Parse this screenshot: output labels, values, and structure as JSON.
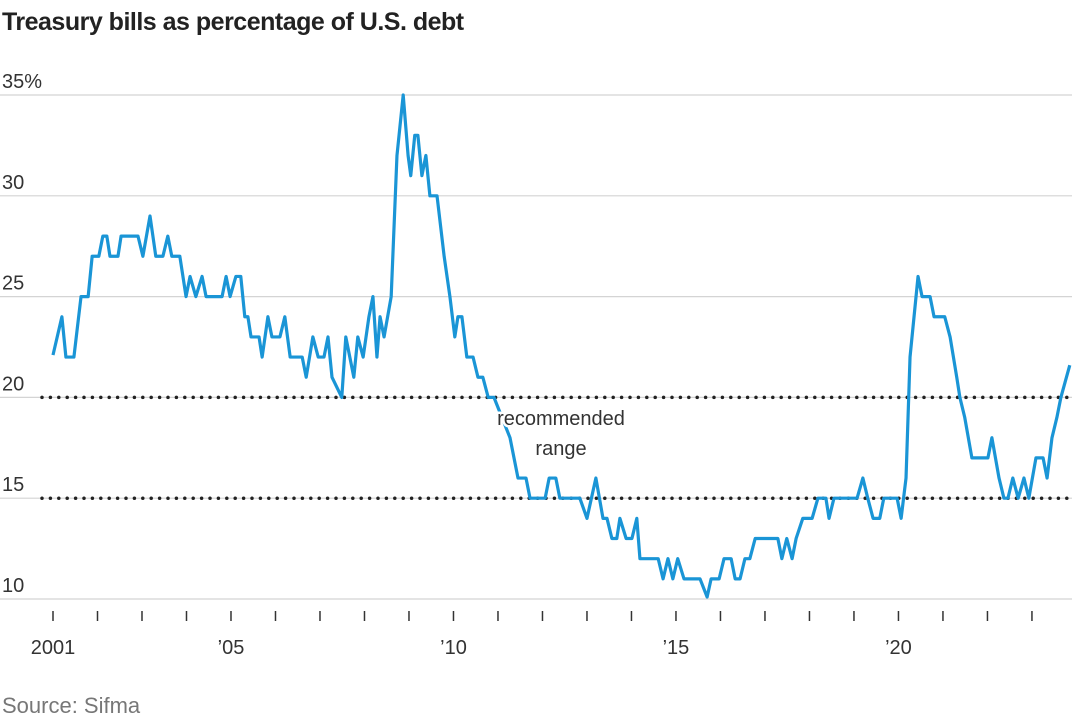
{
  "chart_data": {
    "type": "line",
    "title": "Treasury bills as percentage of U.S. debt",
    "source": "Source: Sifma",
    "annotation": [
      "recommended",
      "range"
    ],
    "range": [
      15,
      20
    ],
    "color": "#1a95d6",
    "xlim": [
      2001,
      2023.9
    ],
    "ylim": [
      10,
      35
    ],
    "xticks": [
      {
        "value": 2001,
        "label": "2001"
      },
      {
        "value": 2005,
        "label": "’05"
      },
      {
        "value": 2010,
        "label": "’10"
      },
      {
        "value": 2015,
        "label": "’15"
      },
      {
        "value": 2020,
        "label": "’20"
      }
    ],
    "xminorticks": [
      2002,
      2003,
      2004,
      2006,
      2007,
      2008,
      2009,
      2011,
      2012,
      2013,
      2014,
      2016,
      2017,
      2018,
      2019,
      2021,
      2022,
      2023
    ],
    "yticks": [
      10,
      15,
      20,
      25,
      30,
      {
        "value": 35,
        "label": "35%"
      }
    ],
    "grid": true,
    "x": [
      2001.0,
      2001.2,
      2001.29,
      2001.47,
      2001.63,
      2001.79,
      2001.88,
      2002.03,
      2002.12,
      2002.21,
      2002.28,
      2002.46,
      2002.53,
      2002.91,
      2003.02,
      2003.18,
      2003.31,
      2003.47,
      2003.58,
      2003.67,
      2003.85,
      2003.99,
      2004.08,
      2004.21,
      2004.35,
      2004.44,
      2004.8,
      2004.89,
      2004.98,
      2005.11,
      2005.22,
      2005.31,
      2005.38,
      2005.45,
      2005.63,
      2005.7,
      2005.83,
      2005.92,
      2006.1,
      2006.21,
      2006.33,
      2006.6,
      2006.69,
      2006.84,
      2006.96,
      2007.09,
      2007.18,
      2007.27,
      2007.49,
      2007.58,
      2007.76,
      2007.85,
      2007.97,
      2008.1,
      2008.19,
      2008.28,
      2008.35,
      2008.44,
      2008.6,
      2008.73,
      2008.87,
      2008.98,
      2009.04,
      2009.13,
      2009.2,
      2009.29,
      2009.38,
      2009.47,
      2009.63,
      2009.79,
      2009.92,
      2010.03,
      2010.1,
      2010.19,
      2010.3,
      2010.44,
      2010.55,
      2010.66,
      2010.78,
      2010.91,
      2011.27,
      2011.45,
      2011.63,
      2011.72,
      2012.06,
      2012.15,
      2012.3,
      2012.39,
      2012.84,
      2013.0,
      2013.2,
      2013.36,
      2013.45,
      2013.56,
      2013.67,
      2013.74,
      2013.88,
      2014.01,
      2014.12,
      2014.19,
      2014.6,
      2014.71,
      2014.82,
      2014.93,
      2015.04,
      2015.18,
      2015.54,
      2015.7,
      2015.79,
      2015.97,
      2016.08,
      2016.24,
      2016.33,
      2016.44,
      2016.55,
      2016.66,
      2016.78,
      2017.29,
      2017.38,
      2017.49,
      2017.61,
      2017.7,
      2017.85,
      2018.06,
      2018.19,
      2018.37,
      2018.44,
      2018.55,
      2019.07,
      2019.2,
      2019.31,
      2019.43,
      2019.58,
      2019.67,
      2019.97,
      2020.06,
      2020.17,
      2020.26,
      2020.44,
      2020.53,
      2020.71,
      2020.8,
      2021.04,
      2021.16,
      2021.31,
      2021.38,
      2021.49,
      2021.65,
      2022.01,
      2022.1,
      2022.26,
      2022.37,
      2022.46,
      2022.57,
      2022.69,
      2022.82,
      2022.93,
      2023.09,
      2023.25,
      2023.34,
      2023.45,
      2023.56,
      2023.65,
      2023.85
    ],
    "values": [
      22.1,
      24,
      22,
      22,
      25,
      25,
      27,
      27,
      28,
      28,
      27,
      27,
      28,
      28,
      27,
      29,
      27,
      27,
      28,
      27,
      27,
      25,
      26,
      25,
      26,
      25,
      25,
      26,
      25,
      26,
      26,
      24,
      24,
      23,
      23,
      22,
      24,
      23,
      23,
      24,
      22,
      22,
      21,
      23,
      22,
      22,
      23,
      21,
      20,
      23,
      21,
      23,
      22,
      24,
      25,
      22,
      24,
      23,
      25,
      32,
      35,
      32,
      31,
      33,
      33,
      31,
      32,
      30,
      30,
      27,
      25,
      23,
      24,
      24,
      22,
      22,
      21,
      21,
      20,
      20,
      18,
      16,
      16,
      15,
      15,
      16,
      16,
      15,
      15,
      14,
      16,
      14,
      14,
      13,
      13,
      14,
      13,
      13,
      14,
      12,
      12,
      11,
      12,
      11,
      12,
      11,
      11,
      10.1,
      11,
      11,
      12,
      12,
      11,
      11,
      12,
      12,
      13,
      13,
      12,
      13,
      12,
      13,
      14,
      14,
      15,
      15,
      14,
      15,
      15,
      16,
      15,
      14,
      14,
      15,
      15,
      14,
      16,
      22,
      26,
      25,
      25,
      24,
      24,
      23,
      21,
      20,
      19,
      17,
      17,
      18,
      16,
      15,
      15,
      16,
      15,
      16,
      15,
      17,
      17,
      16,
      18,
      19,
      20,
      21.6
    ]
  }
}
